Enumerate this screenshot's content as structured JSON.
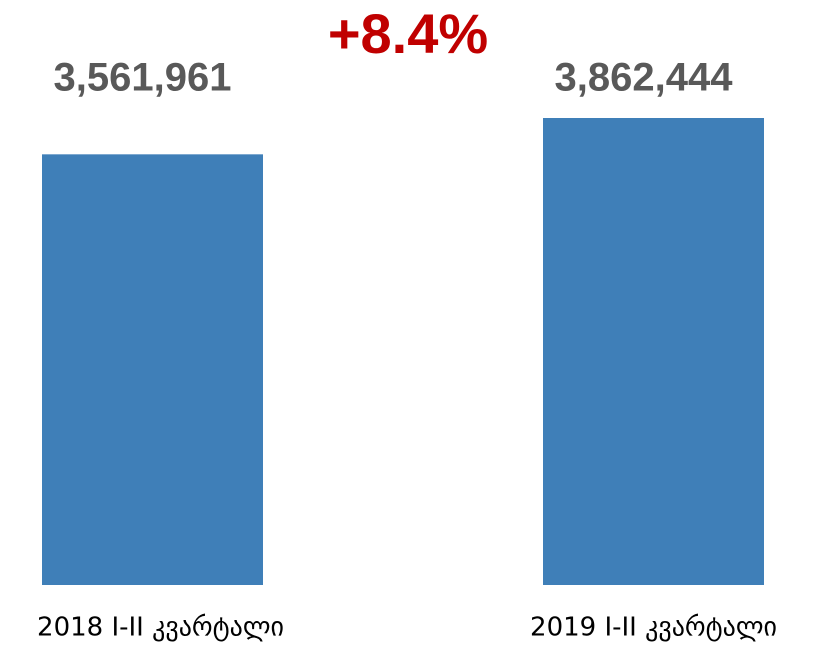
{
  "chart_data": {
    "type": "bar",
    "annotation": "+8.4%",
    "categories": [
      "2018 I-II კვარტალი",
      "2019 I-II კვარტალი"
    ],
    "values": [
      3561961,
      3862444
    ],
    "value_labels": [
      "3,561,961",
      "3,862,444"
    ],
    "color": "#3f7fb8"
  }
}
